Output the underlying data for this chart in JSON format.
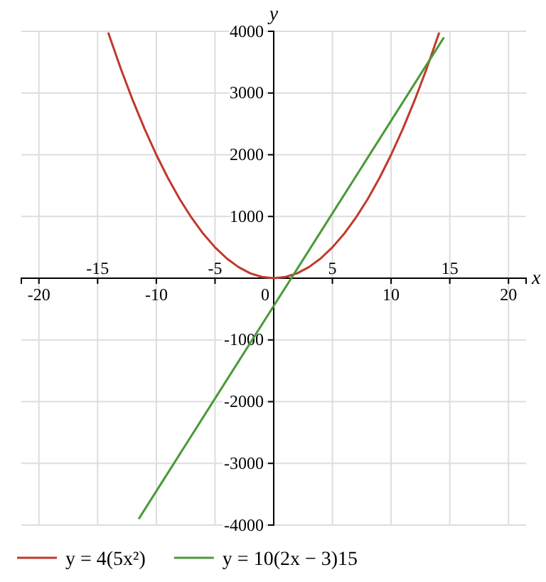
{
  "chart_data": {
    "type": "line",
    "xlabel": "x",
    "ylabel": "y",
    "xlim": [
      -21.5,
      21.5
    ],
    "ylim": [
      -4000,
      4000
    ],
    "xticks": [
      -20,
      {
        "value": -15,
        "label": null
      },
      -10,
      {
        "value": -5,
        "label": null
      },
      0,
      {
        "value": 5,
        "label": null
      },
      10,
      {
        "value": 15,
        "label": null
      },
      20
    ],
    "x2lim": [
      -21.5,
      21.5
    ],
    "x2ticks": [
      -15,
      -5,
      5,
      15
    ],
    "yticks": [
      -4000,
      -3000,
      -2000,
      -1000,
      1000,
      2000,
      3000,
      4000
    ],
    "grid": true,
    "legend": "bottom",
    "marker": "none",
    "line_style": "solid",
    "series": [
      {
        "name": "y = 4(5x²)",
        "color": "#c0392b",
        "x": [
          -14.1,
          -13,
          -12,
          -11,
          -10,
          -9,
          -8,
          -7,
          -6,
          -5,
          -4,
          -3,
          -2,
          -1,
          0,
          1,
          2,
          3,
          4,
          5,
          6,
          7,
          8,
          9,
          10,
          11,
          12,
          13,
          14.1
        ],
        "values": [
          3980,
          3380,
          2880,
          2420,
          2000,
          1620,
          1280,
          980,
          720,
          500,
          320,
          180,
          80,
          20,
          0,
          20,
          80,
          180,
          320,
          500,
          720,
          980,
          1280,
          1620,
          2000,
          2420,
          2880,
          3380,
          3980
        ]
      },
      {
        "name": "y = 10(2x − 3)15",
        "color": "#4a9a3a",
        "x": [
          -11.5,
          -5,
          0,
          5,
          14.5
        ],
        "values": [
          -3900,
          -1950,
          -450,
          1050,
          3900
        ]
      }
    ]
  }
}
